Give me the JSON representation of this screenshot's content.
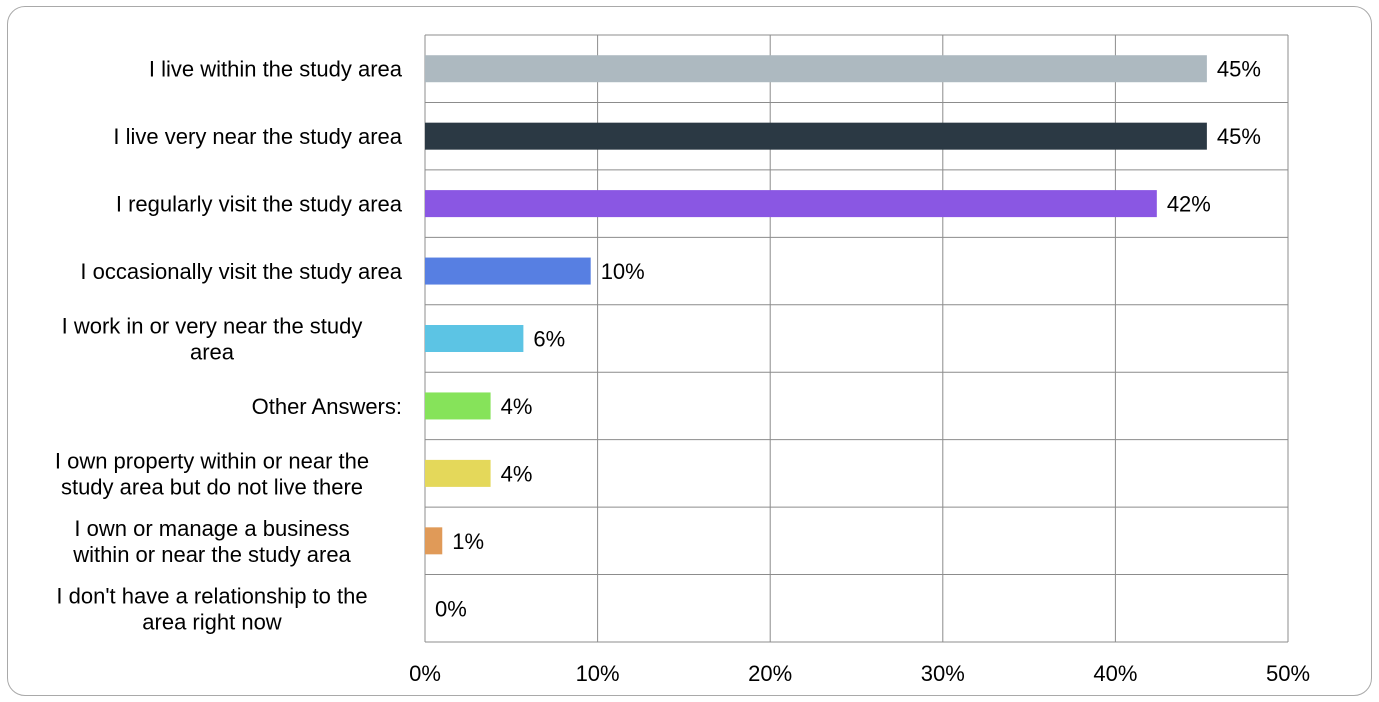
{
  "chart_data": {
    "type": "bar",
    "orientation": "horizontal",
    "title": "",
    "xlabel": "",
    "ylabel": "",
    "xlim": [
      0,
      50
    ],
    "grid": true,
    "legend": "none",
    "categories": [
      "I live within the study area",
      "I live very near the study area",
      "I regularly visit the study area",
      "I occasionally visit the study area",
      "I work in or very near the study area",
      "Other Answers:",
      "I own property within or near the study area but do not live there",
      "I own or manage a business within or near the study area",
      "I don't have a relationship to the area right now"
    ],
    "category_lines": [
      [
        "I live within the study area"
      ],
      [
        "I live very near the study area"
      ],
      [
        "I regularly visit the study area"
      ],
      [
        "I occasionally visit the study area"
      ],
      [
        "I work in or very near the study",
        "area"
      ],
      [
        "Other Answers:"
      ],
      [
        "I own property within or near the",
        "study area but do not live there"
      ],
      [
        "I own or manage a business",
        "within or near the study area"
      ],
      [
        "I don't have a relationship to the",
        "area right now"
      ]
    ],
    "values": [
      45.3,
      45.3,
      42.4,
      9.6,
      5.7,
      3.8,
      3.8,
      1.0,
      0
    ],
    "data_labels": [
      "45%",
      "45%",
      "42%",
      "10%",
      "6%",
      "4%",
      "4%",
      "1%",
      "0%"
    ],
    "bar_colors": [
      "#adb9c0",
      "#2b3944",
      "#8a57e3",
      "#577fe2",
      "#5cc4e4",
      "#86e35a",
      "#e4d85a",
      "#e09a58",
      "#cccccc"
    ],
    "x_ticks": [
      0,
      10,
      20,
      30,
      40,
      50
    ],
    "x_tick_labels": [
      "0%",
      "10%",
      "20%",
      "30%",
      "40%",
      "50%"
    ]
  }
}
